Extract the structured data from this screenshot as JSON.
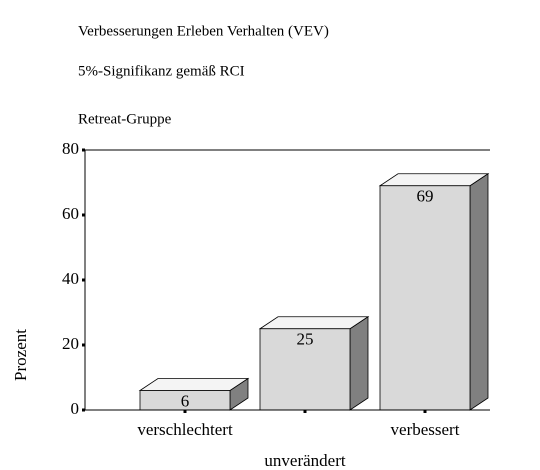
{
  "chart_data": {
    "type": "bar3d",
    "title": "Verbesserungen Erleben Verhalten (VEV)",
    "subtitle": "5%-Signifikanz gemäß RCI",
    "group": "Retreat-Gruppe",
    "ylabel": "Prozent",
    "categories": [
      "verschlechtert",
      "unverändert",
      "verbessert"
    ],
    "values": [
      6,
      25,
      69
    ],
    "color": "#d9d9d9",
    "ylim": [
      0,
      80
    ],
    "yticks": [
      0,
      20,
      40,
      60,
      80
    ]
  }
}
